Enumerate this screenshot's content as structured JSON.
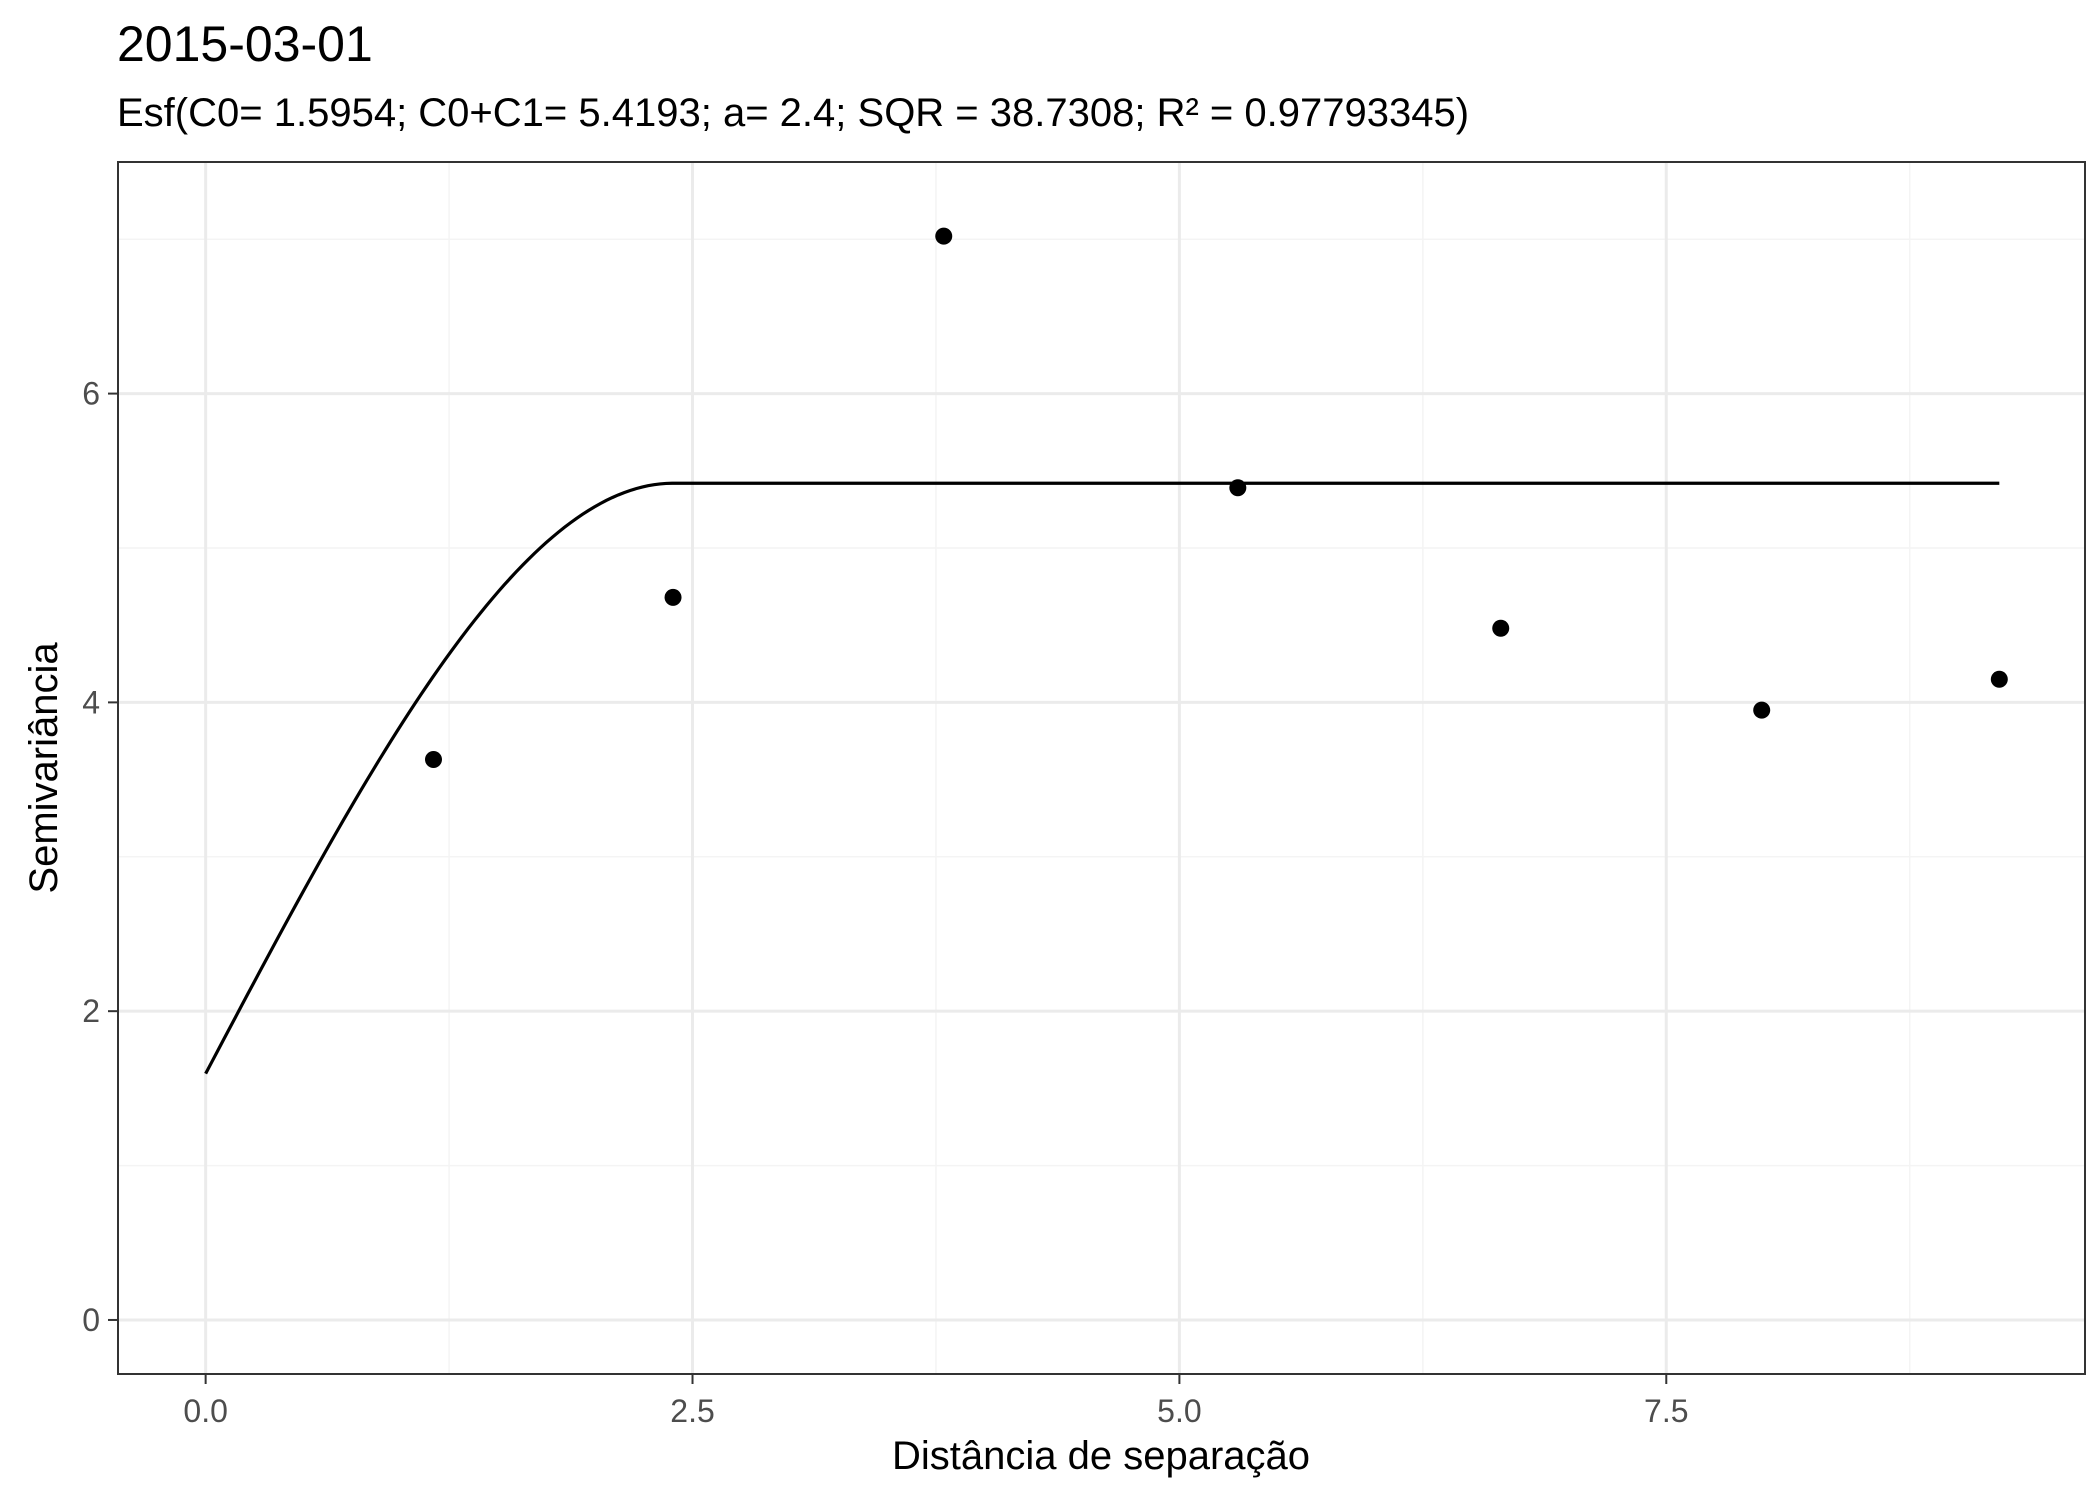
{
  "chart_data": {
    "type": "scatter",
    "title": "2015-03-01",
    "subtitle": "Esf(C0= 1.5954; C0+C1= 5.4193; a= 2.4; SQR = 38.7308; R² = 0.97793345)",
    "xlabel": "Distância de separação",
    "ylabel": "Semivariância",
    "xlim": [
      -0.45,
      9.65
    ],
    "ylim": [
      -0.35,
      7.5
    ],
    "x_ticks": [
      0.0,
      2.5,
      5.0,
      7.5
    ],
    "x_tick_labels": [
      "0.0",
      "2.5",
      "5.0",
      "7.5"
    ],
    "y_ticks": [
      0,
      2,
      4,
      6
    ],
    "y_tick_labels": [
      "0",
      "2",
      "4",
      "6"
    ],
    "grid": true,
    "legend": "none",
    "points": {
      "x": [
        1.17,
        2.4,
        3.79,
        5.3,
        6.65,
        7.99,
        9.21
      ],
      "y": [
        3.63,
        4.68,
        7.02,
        5.39,
        4.48,
        3.95,
        4.15
      ]
    },
    "model": {
      "type": "spherical",
      "nugget": 1.5954,
      "sill": 5.4193,
      "range": 2.4,
      "x_from": 0.0,
      "x_to": 9.21
    },
    "colors": {
      "points": "#000000",
      "line": "#000000",
      "grid_major": "#ebebeb",
      "grid_minor": "#f4f4f4",
      "panel_border": "#333333",
      "tick_text": "#4d4d4d"
    }
  }
}
